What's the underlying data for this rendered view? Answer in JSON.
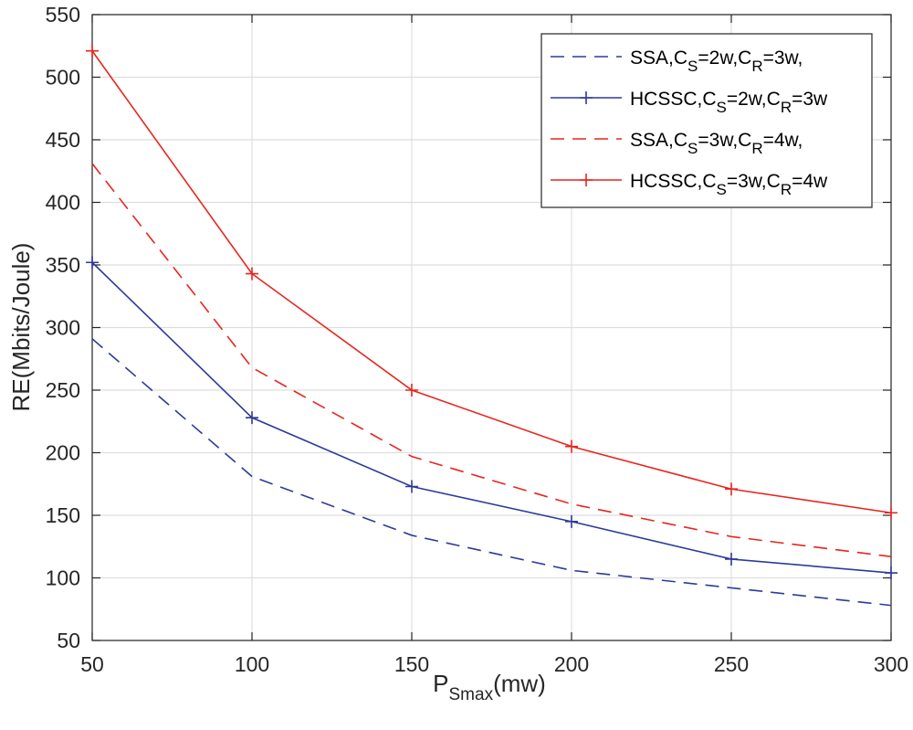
{
  "chart_data": {
    "type": "line",
    "title": "",
    "xlabel": {
      "main": "P",
      "sub": "Smax",
      "suffix": "(mw)"
    },
    "ylabel": "RE(Mbits/Joule)",
    "xlim": [
      50,
      300
    ],
    "ylim": [
      50,
      550
    ],
    "x_ticks": [
      50,
      100,
      150,
      200,
      250,
      300
    ],
    "y_ticks": [
      50,
      100,
      150,
      200,
      250,
      300,
      350,
      400,
      450,
      500,
      550
    ],
    "grid": true,
    "legend_position": "top-right",
    "x": [
      50,
      100,
      150,
      200,
      250,
      300
    ],
    "series": [
      {
        "name": "SSA,C_S=2w,C_R=3w,",
        "legend": [
          {
            "t": "SSA,C"
          },
          {
            "t": "S",
            "sub": true
          },
          {
            "t": "=2w,C"
          },
          {
            "t": "R",
            "sub": true
          },
          {
            "t": "=3w,"
          }
        ],
        "color": "#2e3a9a",
        "dash": "dashed",
        "marker": "none",
        "values": [
          291,
          181,
          134,
          106,
          92,
          78
        ]
      },
      {
        "name": "HCSSC,C_S=2w,C_R=3w",
        "legend": [
          {
            "t": "HCSSC,C"
          },
          {
            "t": "S",
            "sub": true
          },
          {
            "t": "=2w,C"
          },
          {
            "t": "R",
            "sub": true
          },
          {
            "t": "=3w"
          }
        ],
        "color": "#2e3a9a",
        "dash": "solid",
        "marker": "plus",
        "values": [
          352,
          228,
          173,
          145,
          115,
          104
        ]
      },
      {
        "name": "SSA,C_S=3w,C_R=4w,",
        "legend": [
          {
            "t": "SSA,C"
          },
          {
            "t": "S",
            "sub": true
          },
          {
            "t": "=3w,C"
          },
          {
            "t": "R",
            "sub": true
          },
          {
            "t": "=4w,"
          }
        ],
        "color": "#e8251f",
        "dash": "dashed",
        "marker": "none",
        "values": [
          431,
          268,
          197,
          159,
          133,
          117
        ]
      },
      {
        "name": "HCSSC,C_S=3w,C_R=4w",
        "legend": [
          {
            "t": "HCSSC,C"
          },
          {
            "t": "S",
            "sub": true
          },
          {
            "t": "=3w,C"
          },
          {
            "t": "R",
            "sub": true
          },
          {
            "t": "=4w"
          }
        ],
        "color": "#e8251f",
        "dash": "solid",
        "marker": "plus",
        "values": [
          521,
          343,
          250,
          205,
          171,
          152
        ]
      }
    ]
  }
}
